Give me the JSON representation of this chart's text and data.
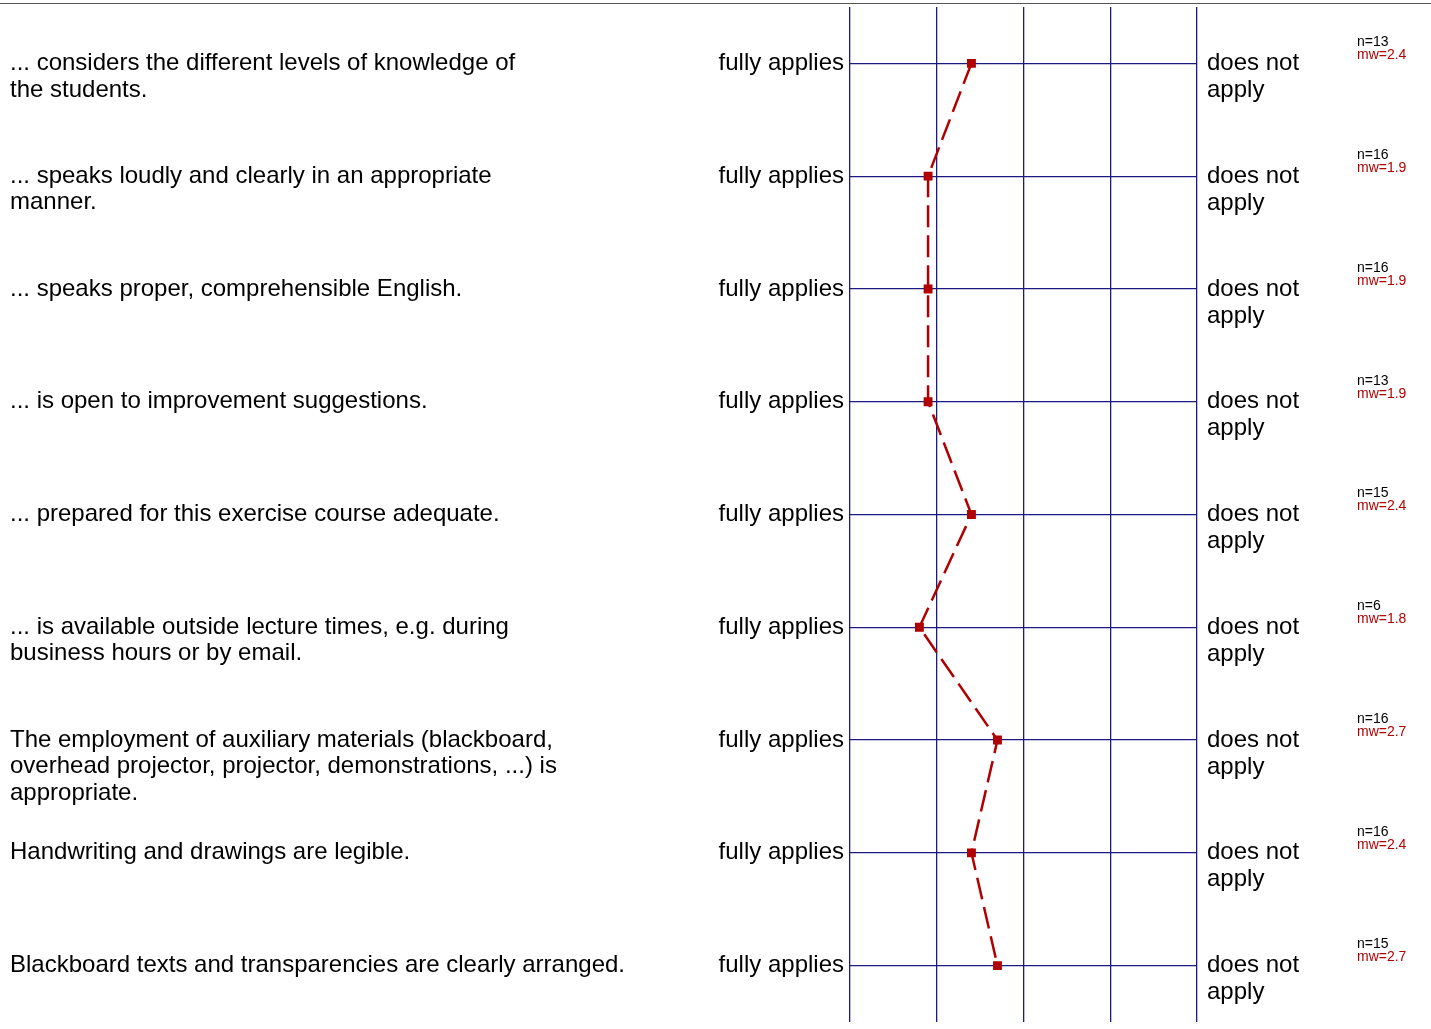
{
  "chart_data": {
    "type": "line",
    "orientation": "horizontal",
    "categories": [
      "... considers the different levels of knowledge of\nthe students.",
      "... speaks loudly and clearly in an appropriate\nmanner.",
      "... speaks proper, comprehensible English.",
      "... is open to improvement suggestions.",
      "... prepared for this exercise course adequate.",
      "... is available outside lecture times, e.g. during\nbusiness hours or by email.",
      "The employment of auxiliary materials (blackboard,\noverhead projector, projector, demonstrations, ...) is\nappropriate.",
      "Handwriting and drawings are legible.",
      "Blackboard texts and transparencies are clearly arranged."
    ],
    "series": [
      {
        "color": "#b00000",
        "values": [
          2.4,
          1.9,
          1.9,
          1.9,
          2.4,
          1.8,
          2.7,
          2.4,
          2.7
        ]
      }
    ],
    "data_labels": true,
    "annotations": [
      "fully applies",
      "does not apply",
      "mw=",
      "n=13",
      "n=16",
      "n=16",
      "n=13",
      "n=15",
      "n=6",
      "n=16",
      "n=16",
      "n=15"
    ],
    "xlim": [
      1,
      5
    ],
    "xticks": [
      {
        "value": 1,
        "label": null
      },
      {
        "value": 2,
        "label": null
      },
      {
        "value": 3,
        "label": null
      },
      {
        "value": 4,
        "label": null
      },
      {
        "value": 5,
        "label": null
      }
    ],
    "grid": true,
    "marker": "square",
    "line_style": "dashed"
  }
}
